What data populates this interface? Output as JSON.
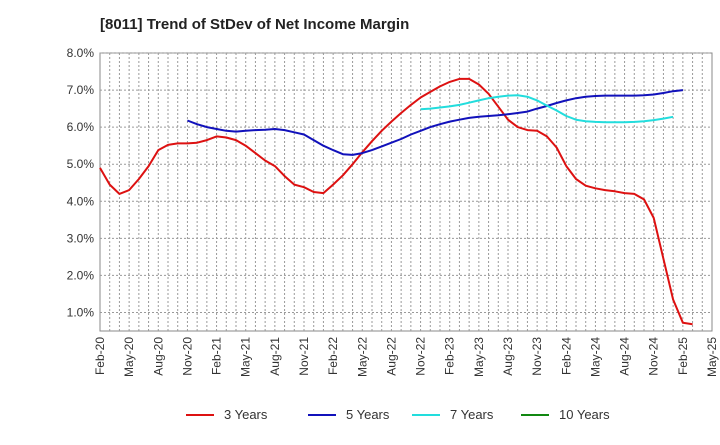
{
  "chart_data": {
    "type": "line",
    "title": "[8011]  Trend of StDev of Net Income Margin",
    "xlabel": "",
    "ylabel": "",
    "ylim": [
      0.5,
      8.0
    ],
    "ytick_values": [
      1,
      2,
      3,
      4,
      5,
      6,
      7,
      8
    ],
    "ytick_labels": [
      "1.0%",
      "2.0%",
      "3.0%",
      "4.0%",
      "5.0%",
      "6.0%",
      "7.0%",
      "8.0%"
    ],
    "x_tick_labels": [
      "Feb-20",
      "May-20",
      "Aug-20",
      "Nov-20",
      "Feb-21",
      "May-21",
      "Aug-21",
      "Nov-21",
      "Feb-22",
      "May-22",
      "Aug-22",
      "Nov-22",
      "Feb-23",
      "May-23",
      "Aug-23",
      "Nov-23",
      "Feb-24",
      "May-24",
      "Aug-24",
      "Nov-24",
      "Feb-25",
      "May-25"
    ],
    "x_start": "2020-02",
    "x_end": "2025-05",
    "grid": true,
    "legend_position": "bottom",
    "series": [
      {
        "name": "3 Years",
        "color": "#dd1111",
        "start": "2020-02",
        "values": [
          4.9,
          4.45,
          4.2,
          4.3,
          4.6,
          4.95,
          5.38,
          5.52,
          5.56,
          5.56,
          5.58,
          5.65,
          5.75,
          5.72,
          5.65,
          5.5,
          5.3,
          5.1,
          4.95,
          4.68,
          4.45,
          4.38,
          4.25,
          4.22,
          4.45,
          4.7,
          5.0,
          5.32,
          5.62,
          5.9,
          6.15,
          6.38,
          6.6,
          6.8,
          6.95,
          7.1,
          7.22,
          7.3,
          7.3,
          7.15,
          6.9,
          6.55,
          6.2,
          6.0,
          5.92,
          5.9,
          5.75,
          5.45,
          4.95,
          4.6,
          4.42,
          4.35,
          4.3,
          4.27,
          4.22,
          4.2,
          4.05,
          3.55,
          2.45,
          1.35,
          0.72,
          0.68
        ]
      },
      {
        "name": "5 Years",
        "color": "#1111bb",
        "start": "2020-11",
        "values": [
          6.18,
          6.08,
          6.0,
          5.95,
          5.9,
          5.88,
          5.9,
          5.92,
          5.93,
          5.95,
          5.92,
          5.86,
          5.8,
          5.65,
          5.5,
          5.38,
          5.27,
          5.25,
          5.3,
          5.38,
          5.48,
          5.58,
          5.68,
          5.8,
          5.9,
          6.0,
          6.08,
          6.15,
          6.2,
          6.25,
          6.28,
          6.3,
          6.32,
          6.35,
          6.38,
          6.42,
          6.5,
          6.57,
          6.65,
          6.72,
          6.78,
          6.82,
          6.84,
          6.85,
          6.85,
          6.85,
          6.85,
          6.86,
          6.88,
          6.92,
          6.97,
          7.0
        ]
      },
      {
        "name": "7 Years",
        "color": "#22dddd",
        "start": "2022-11",
        "values": [
          6.48,
          6.5,
          6.53,
          6.56,
          6.6,
          6.66,
          6.72,
          6.78,
          6.82,
          6.85,
          6.86,
          6.82,
          6.72,
          6.58,
          6.45,
          6.3,
          6.2,
          6.16,
          6.14,
          6.13,
          6.13,
          6.13,
          6.14,
          6.16,
          6.19,
          6.23,
          6.28
        ]
      },
      {
        "name": "10 Years",
        "color": "#118811",
        "start": "2020-02",
        "values": []
      }
    ]
  }
}
